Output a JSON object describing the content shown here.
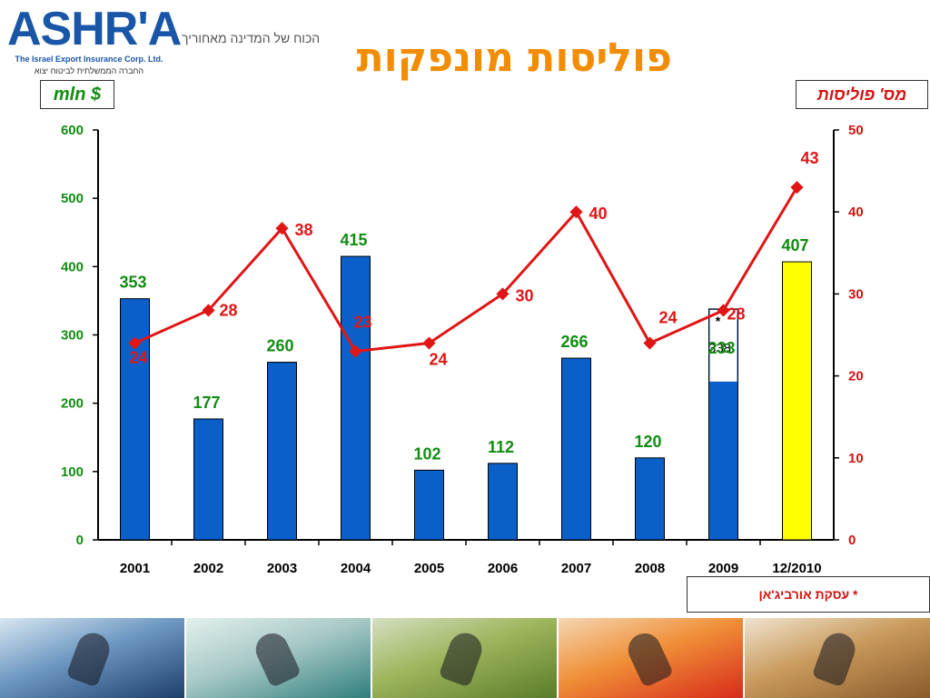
{
  "header": {
    "logo_text": "ASHR'A",
    "logo_subtitle": "The Israel Export Insurance Corp. Ltd.",
    "logo_subtitle_he": "החברה הממשלתית לביטוח יצוא",
    "tagline": "הכוח של המדינה מאחוריך",
    "title": "פוליסות מונפקות"
  },
  "units": {
    "left": "mln $",
    "right": "מס' פוליסות"
  },
  "footnote": "* עסקת אורביג'אן",
  "colors": {
    "bars": "#0a5fc8",
    "highlight_bar": "#ffff00",
    "line": "#e01515",
    "left_axis": "#118d11",
    "right_axis": "#d61111",
    "title": "#f28c00"
  },
  "chart_data": {
    "type": "bar+line",
    "categories": [
      "2001",
      "2002",
      "2003",
      "2004",
      "2005",
      "2006",
      "2007",
      "2008",
      "2009",
      "12/2010"
    ],
    "bar_values": [
      353,
      177,
      260,
      415,
      102,
      112,
      266,
      120,
      233,
      407
    ],
    "bar_extra": {
      "category": "2009",
      "value": 338,
      "label": "*",
      "value_label": "338"
    },
    "line_values": [
      24,
      28,
      38,
      23,
      24,
      30,
      40,
      24,
      28,
      43
    ],
    "left_axis": {
      "min": 0,
      "max": 600,
      "ticks": [
        "0",
        "100",
        "200",
        "300",
        "400",
        "500",
        "600"
      ]
    },
    "right_axis": {
      "min": 0,
      "max": 50,
      "ticks": [
        "0",
        "10",
        "20",
        "30",
        "40",
        "50"
      ]
    }
  },
  "photos": [
    {
      "name": "windsurfer",
      "colors": [
        "#1e3f6b",
        "#6d98c2",
        "#d8e6f1"
      ]
    },
    {
      "name": "speed-skater",
      "colors": [
        "#2f7f7e",
        "#a8c9c6",
        "#e3f0ee"
      ]
    },
    {
      "name": "cyclist",
      "colors": [
        "#5b7c2a",
        "#9db55c",
        "#d5dfc1"
      ]
    },
    {
      "name": "skier",
      "colors": [
        "#d82b1a",
        "#f09038",
        "#f4d6b3"
      ]
    },
    {
      "name": "horse-race",
      "colors": [
        "#8a5a2b",
        "#c99a5c",
        "#f0e4cf"
      ]
    }
  ]
}
